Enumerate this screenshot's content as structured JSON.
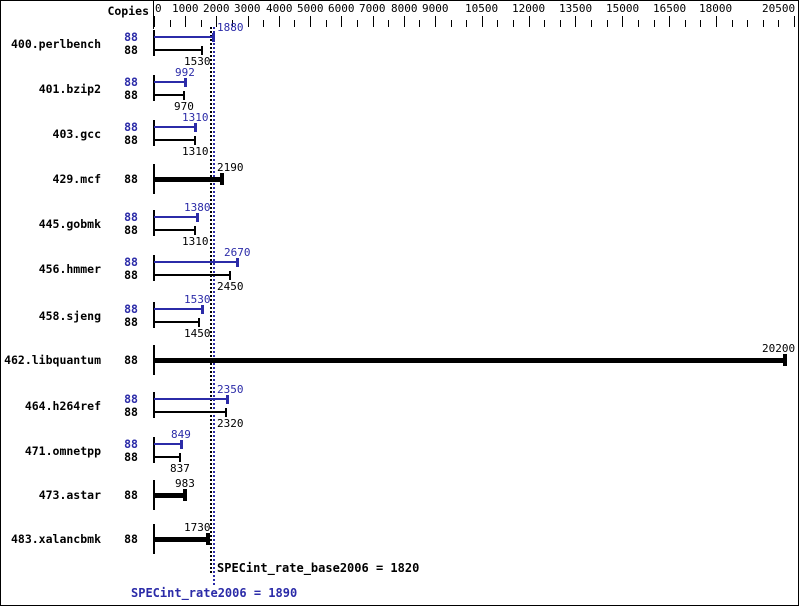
{
  "copies_header": "Copies",
  "summary": {
    "base_text": "SPECint_rate_base2006 = 1820",
    "peak_text": "SPECint_rate2006 = 1890",
    "base_value": 1820,
    "peak_value": 1890
  },
  "colors": {
    "peak": "#2b2ba8",
    "base": "#000000",
    "background": "#ffffff"
  },
  "chart_data": {
    "type": "bar",
    "orientation": "horizontal",
    "title": "",
    "xlabel": "",
    "ylabel": "",
    "xlim": [
      0,
      20500
    ],
    "x_major_ticks": [
      0,
      1000,
      2000,
      3000,
      4000,
      5000,
      6000,
      7000,
      8000,
      9000,
      10500,
      12000,
      13500,
      15000,
      16500,
      18000,
      20500
    ],
    "x_minor_tick_step": 500,
    "grid": false,
    "legend_position": "none",
    "copies_column_header": "Copies",
    "categories": [
      "400.perlbench",
      "401.bzip2",
      "403.gcc",
      "429.mcf",
      "445.gobmk",
      "456.hmmer",
      "458.sjeng",
      "462.libquantum",
      "464.h264ref",
      "471.omnetpp",
      "473.astar",
      "483.xalancbmk"
    ],
    "series": [
      {
        "name": "peak",
        "color": "#2b2ba8",
        "values": [
          1880,
          992,
          1310,
          2190,
          1380,
          2670,
          1530,
          20200,
          2350,
          849,
          983,
          1730
        ]
      },
      {
        "name": "base",
        "color": "#000000",
        "values": [
          1530,
          970,
          1310,
          2190,
          1310,
          2450,
          1450,
          20200,
          2320,
          837,
          983,
          1730
        ]
      }
    ],
    "benchmarks": [
      {
        "name": "400.perlbench",
        "rows": [
          {
            "kind": "peak",
            "copies": "88",
            "value": 1880,
            "label": "1880"
          },
          {
            "kind": "base",
            "copies": "88",
            "value": 1530,
            "label": "1530"
          }
        ]
      },
      {
        "name": "401.bzip2",
        "rows": [
          {
            "kind": "peak",
            "copies": "88",
            "value": 992,
            "label": "992"
          },
          {
            "kind": "base",
            "copies": "88",
            "value": 970,
            "label": "970"
          }
        ]
      },
      {
        "name": "403.gcc",
        "rows": [
          {
            "kind": "peak",
            "copies": "88",
            "value": 1310,
            "label": "1310"
          },
          {
            "kind": "base",
            "copies": "88",
            "value": 1310,
            "label": "1310"
          }
        ]
      },
      {
        "name": "429.mcf",
        "rows": [
          {
            "kind": "bold",
            "copies": "88",
            "value": 2190,
            "label": "2190"
          }
        ]
      },
      {
        "name": "445.gobmk",
        "rows": [
          {
            "kind": "peak",
            "copies": "88",
            "value": 1380,
            "label": "1380"
          },
          {
            "kind": "base",
            "copies": "88",
            "value": 1310,
            "label": "1310"
          }
        ]
      },
      {
        "name": "456.hmmer",
        "rows": [
          {
            "kind": "peak",
            "copies": "88",
            "value": 2670,
            "label": "2670"
          },
          {
            "kind": "base",
            "copies": "88",
            "value": 2450,
            "label": "2450"
          }
        ]
      },
      {
        "name": "458.sjeng",
        "rows": [
          {
            "kind": "peak",
            "copies": "88",
            "value": 1530,
            "label": "1530"
          },
          {
            "kind": "base",
            "copies": "88",
            "value": 1450,
            "label": "1450"
          }
        ]
      },
      {
        "name": "462.libquantum",
        "rows": [
          {
            "kind": "bold",
            "copies": "88",
            "value": 20200,
            "label": "20200"
          }
        ]
      },
      {
        "name": "464.h264ref",
        "rows": [
          {
            "kind": "peak",
            "copies": "88",
            "value": 2350,
            "label": "2350"
          },
          {
            "kind": "base",
            "copies": "88",
            "value": 2320,
            "label": "2320"
          }
        ]
      },
      {
        "name": "471.omnetpp",
        "rows": [
          {
            "kind": "peak",
            "copies": "88",
            "value": 849,
            "label": "849"
          },
          {
            "kind": "base",
            "copies": "88",
            "value": 837,
            "label": "837"
          }
        ]
      },
      {
        "name": "473.astar",
        "rows": [
          {
            "kind": "bold",
            "copies": "88",
            "value": 983,
            "label": "983"
          }
        ]
      },
      {
        "name": "483.xalancbmk",
        "rows": [
          {
            "kind": "bold",
            "copies": "88",
            "value": 1730,
            "label": "1730"
          }
        ]
      }
    ],
    "reference_lines": [
      {
        "name": "SPECint_rate_base2006",
        "value": 1820,
        "color": "#000000"
      },
      {
        "name": "SPECint_rate2006",
        "value": 1890,
        "color": "#2b2ba8"
      }
    ]
  }
}
